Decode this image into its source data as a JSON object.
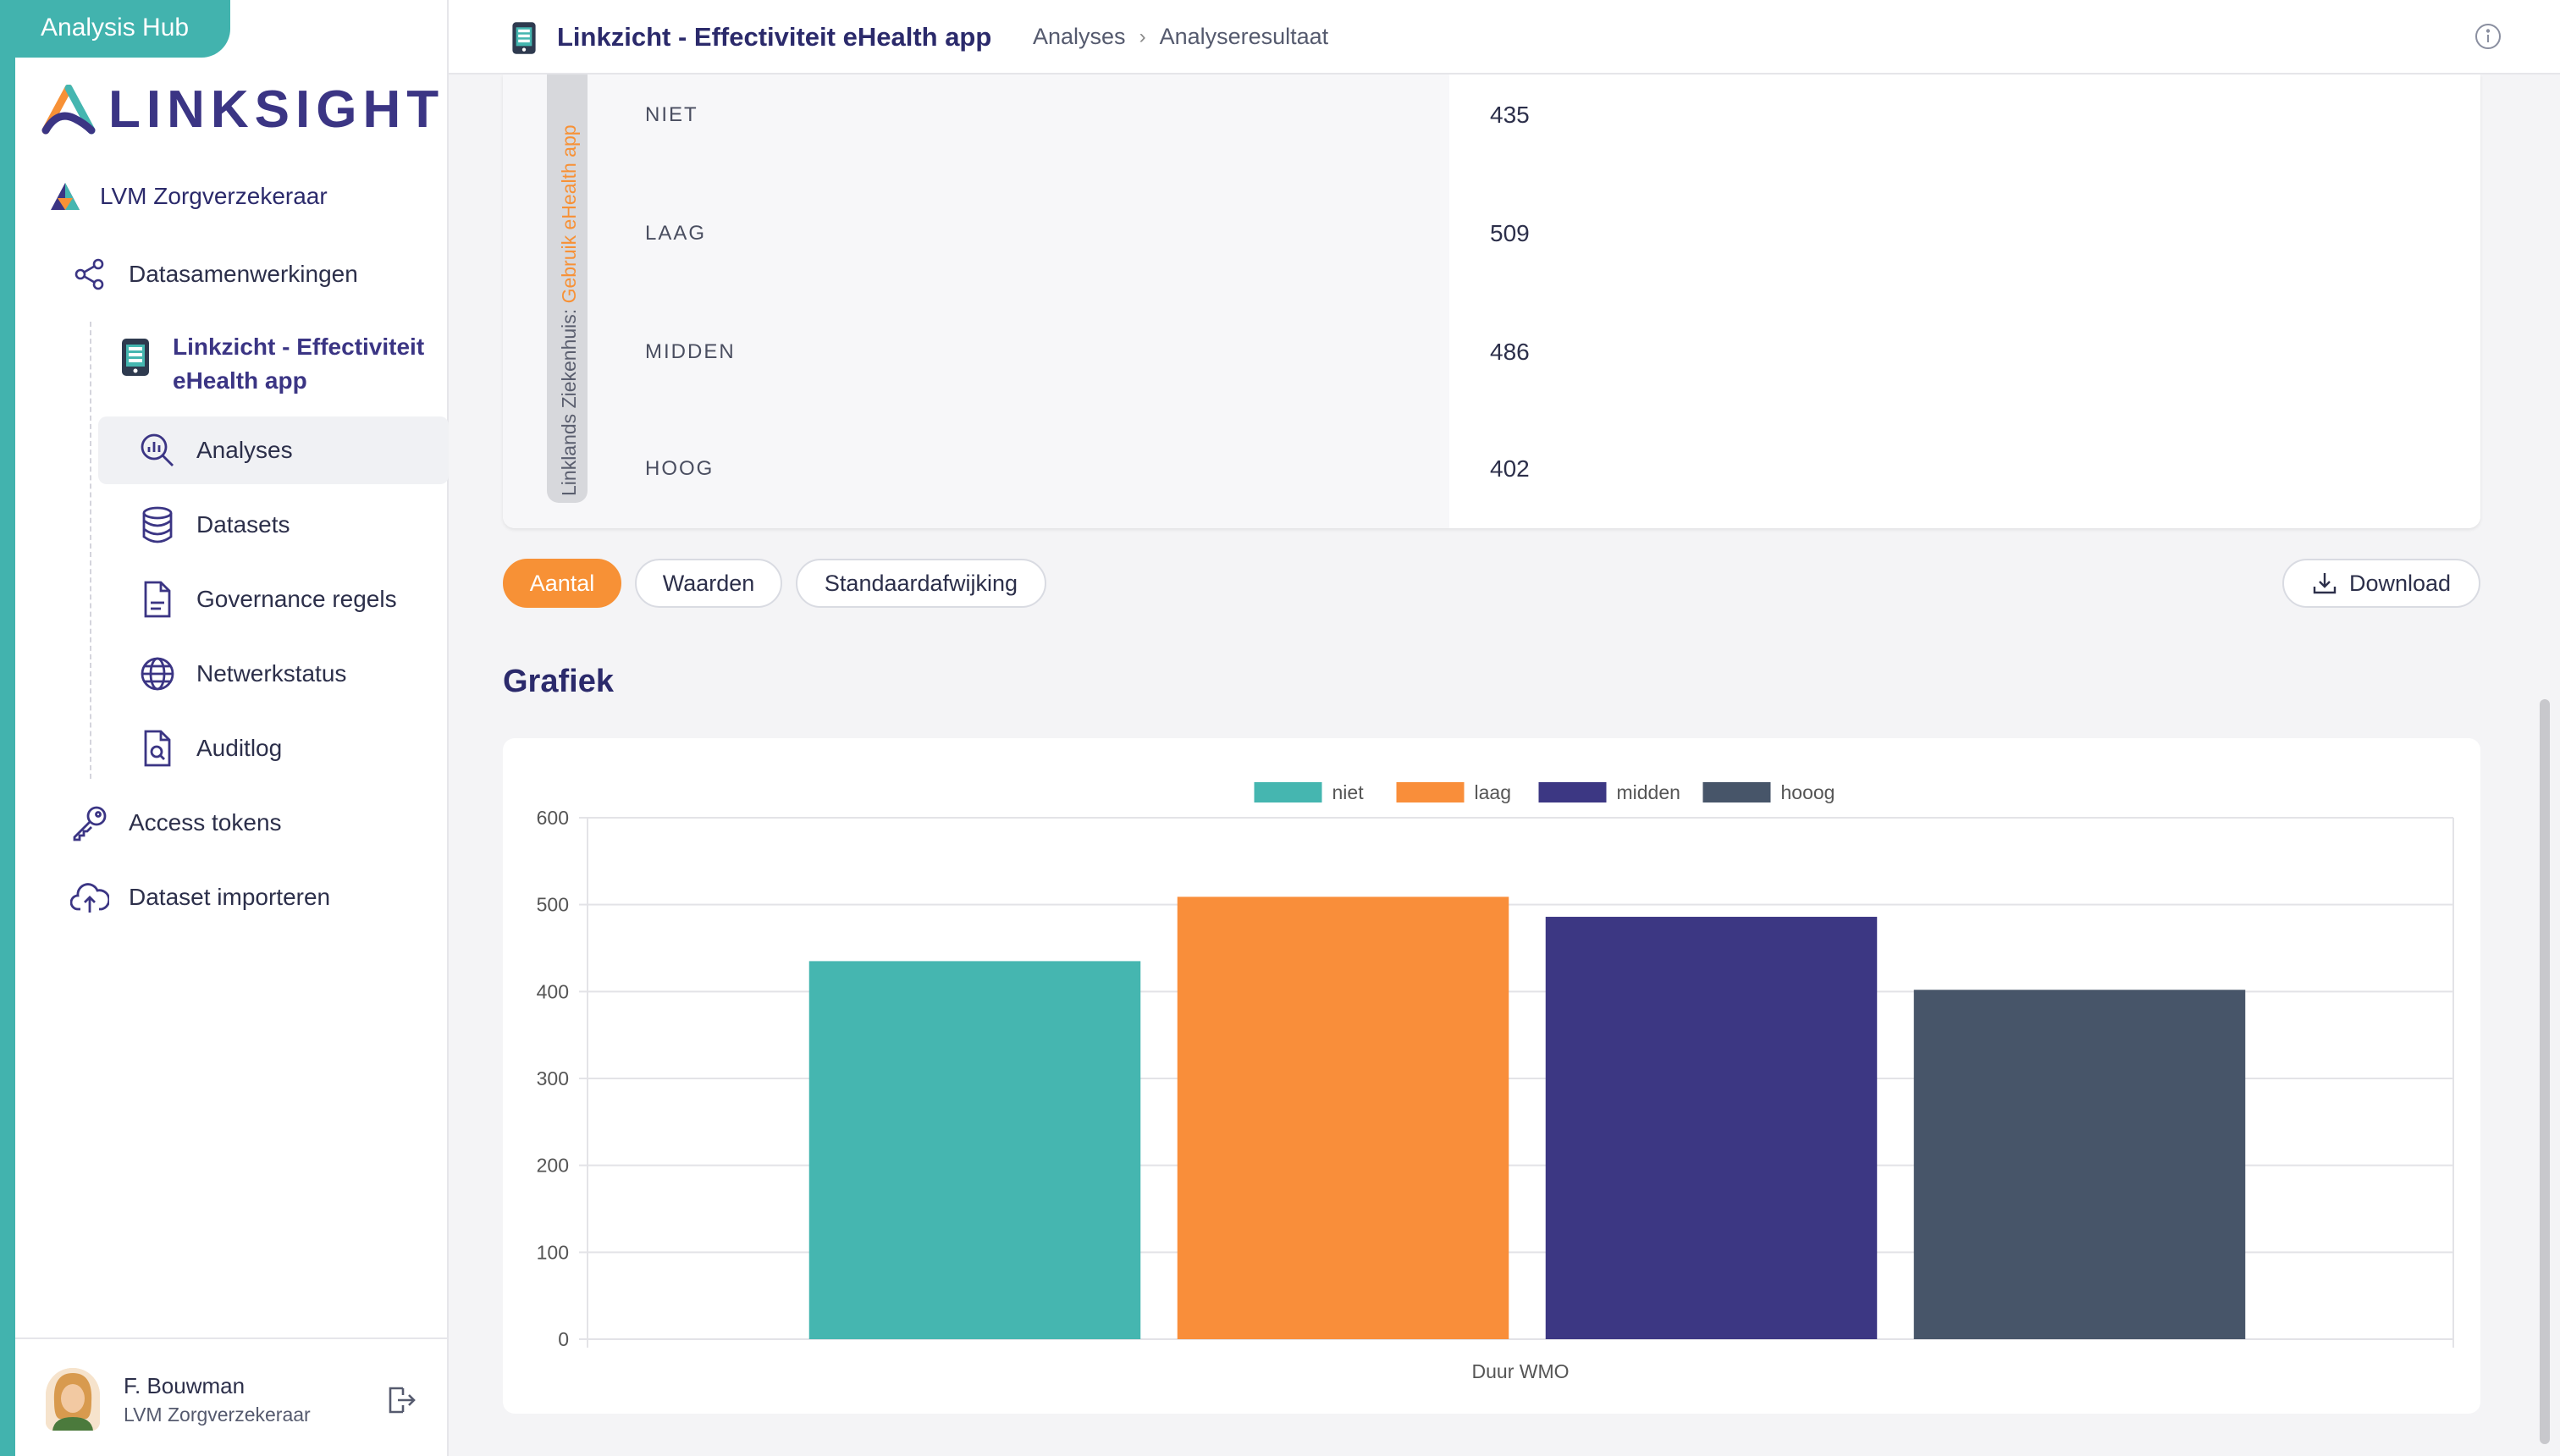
{
  "app": {
    "hub_label": "Analysis Hub",
    "logo_text": "LINKSIGHT"
  },
  "sidebar": {
    "org": "LVM Zorgverzekeraar",
    "items": {
      "datasamenwerkingen": "Datasamenwerkingen",
      "project": "Linkzicht - Effectiviteit eHealth app",
      "analyses": "Analyses",
      "datasets": "Datasets",
      "governance": "Governance regels",
      "netwerkstatus": "Netwerkstatus",
      "auditlog": "Auditlog",
      "access_tokens": "Access tokens",
      "dataset_importeren": "Dataset importeren"
    },
    "user": {
      "name": "F. Bouwman",
      "org": "LVM Zorgverzekeraar"
    }
  },
  "header": {
    "title": "Linkzicht - Effectiviteit eHealth app",
    "breadcrumb": [
      "Analyses",
      "Analyseresultaat"
    ]
  },
  "table": {
    "group_label_prefix": "Linklands Ziekenhuis: ",
    "group_label_accent": "Gebruik eHealth app",
    "rows": [
      {
        "label": "NIET",
        "value": "435"
      },
      {
        "label": "LAAG",
        "value": "509"
      },
      {
        "label": "MIDDEN",
        "value": "486"
      },
      {
        "label": "HOOG",
        "value": "402"
      }
    ]
  },
  "toggles": {
    "aantal": "Aantal",
    "waarden": "Waarden",
    "std": "Standaardafwijking",
    "active": "Aantal"
  },
  "download_label": "Download",
  "section_title": "Grafiek",
  "colors": {
    "teal": "#45b6b0",
    "orange": "#f98e3a",
    "indigo": "#3c3783",
    "slate": "#475569"
  },
  "chart_data": {
    "type": "bar",
    "categories": [
      "Duur WMO"
    ],
    "series": [
      {
        "name": "niet",
        "values": [
          435
        ],
        "color": "#45b6b0"
      },
      {
        "name": "laag",
        "values": [
          509
        ],
        "color": "#f98e3a"
      },
      {
        "name": "midden",
        "values": [
          486
        ],
        "color": "#3c3783"
      },
      {
        "name": "hooog",
        "values": [
          402
        ],
        "color": "#475569"
      }
    ],
    "ylim": [
      0,
      600
    ],
    "yticks": [
      "0",
      "100",
      "200",
      "300",
      "400",
      "500",
      "600"
    ],
    "xlabel": "Duur WMO",
    "legend": "top-center",
    "grid": true
  }
}
